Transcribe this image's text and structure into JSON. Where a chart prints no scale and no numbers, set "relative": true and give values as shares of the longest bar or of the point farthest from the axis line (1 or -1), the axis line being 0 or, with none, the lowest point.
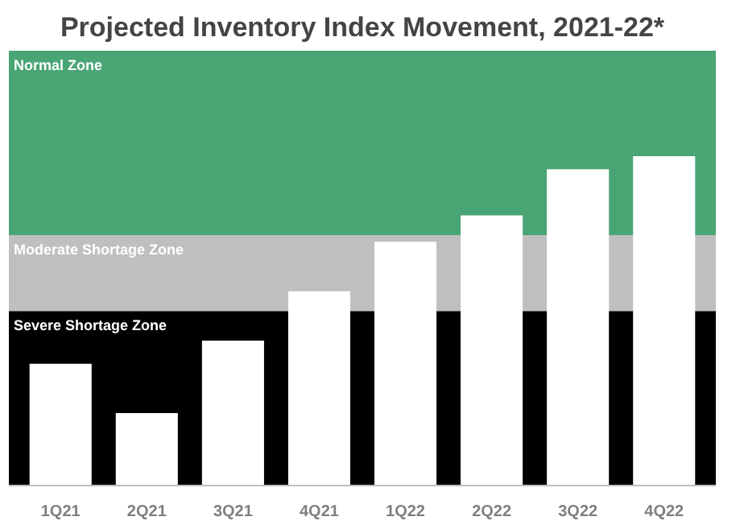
{
  "chart_data": {
    "type": "bar",
    "title": "Projected Inventory Index Movement, 2021-22*",
    "relative": true,
    "categories": [
      "1Q21",
      "2Q21",
      "3Q21",
      "4Q21",
      "1Q22",
      "2Q22",
      "3Q22",
      "4Q22"
    ],
    "values": [
      0.37,
      0.22,
      0.44,
      0.59,
      0.74,
      0.82,
      0.96,
      1
    ],
    "color": "#ffffff",
    "bands": [
      {
        "axis": "y",
        "from": 0,
        "to": 0.53,
        "label": "Severe Shortage Zone",
        "color": "#000000"
      },
      {
        "axis": "y",
        "from": 0.53,
        "to": 0.76,
        "label": "Moderate Shortage Zone",
        "color": "#bfbfbf"
      },
      {
        "axis": "y",
        "from": 0.76,
        "to": 1.32,
        "label": "Normal Zone",
        "color": "#4aa574"
      }
    ]
  }
}
